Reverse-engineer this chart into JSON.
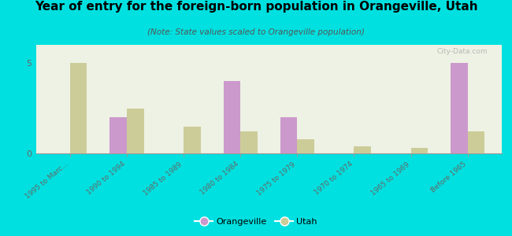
{
  "title": "Year of entry for the foreign-born population in Orangeville, Utah",
  "subtitle": "(Note: State values scaled to Orangeville population)",
  "categories": [
    "1995 to Marc...",
    "1990 to 1994",
    "1985 to 1989",
    "1980 to 1984",
    "1975 to 1979",
    "1970 to 1974",
    "1965 to 1969",
    "Before 1965"
  ],
  "orangeville_values": [
    0,
    2,
    0,
    4,
    2,
    0,
    0,
    5
  ],
  "utah_values": [
    5,
    2.5,
    1.5,
    1.2,
    0.8,
    0.4,
    0.3,
    1.2
  ],
  "orangeville_color": "#cc99cc",
  "utah_color": "#cccc99",
  "background_color": "#00e0e0",
  "plot_bg": "#eef2e4",
  "bar_width": 0.3,
  "ylim": [
    0,
    6
  ],
  "yticks": [
    0,
    5
  ],
  "watermark": "City-Data.com",
  "legend_orangeville": "Orangeville",
  "legend_utah": "Utah",
  "title_fontsize": 11,
  "subtitle_fontsize": 7.5,
  "tick_fontsize": 6.5
}
